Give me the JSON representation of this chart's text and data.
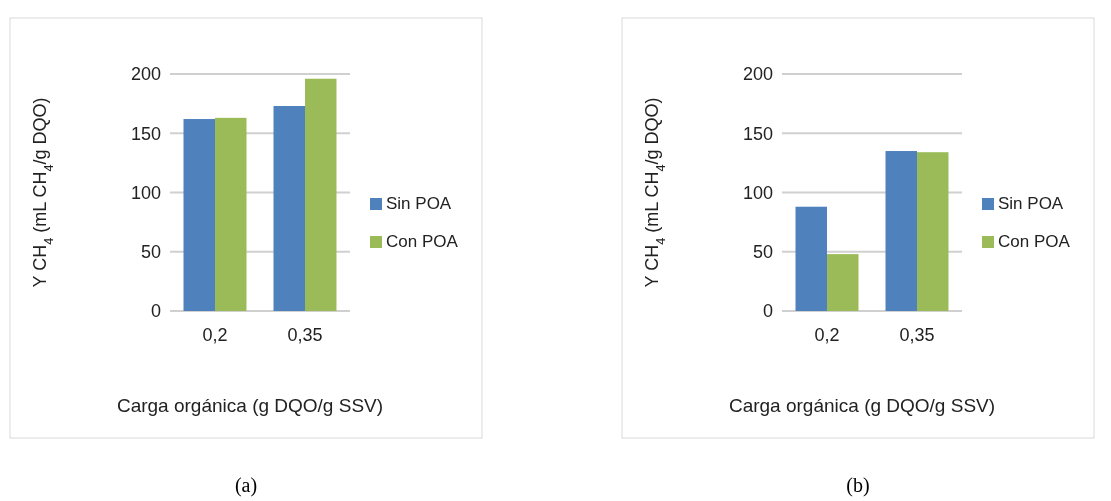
{
  "chart_data": [
    {
      "type": "bar",
      "categories": [
        "0,2",
        "0,35"
      ],
      "series": [
        {
          "name": "Sin POA",
          "color": "#4f81bd",
          "values": [
            162,
            173
          ]
        },
        {
          "name": "Con POA",
          "color": "#9bbb59",
          "values": [
            163,
            196
          ]
        }
      ],
      "ylim": [
        0,
        200
      ],
      "yticks": [
        0,
        50,
        100,
        150,
        200
      ],
      "grid": "y",
      "legend": "right",
      "xlabel": "Carga orgánica (g DQO/g SSV)",
      "ylabel": "Y CH$_{4}$ (mL CH$_{4}$/g DQO)",
      "annotations": [
        "(a)"
      ]
    },
    {
      "type": "bar",
      "categories": [
        "0,2",
        "0,35"
      ],
      "series": [
        {
          "name": "Sin POA",
          "color": "#4f81bd",
          "values": [
            88,
            135
          ]
        },
        {
          "name": "Con POA",
          "color": "#9bbb59",
          "values": [
            48,
            134
          ]
        }
      ],
      "ylim": [
        0,
        200
      ],
      "yticks": [
        0,
        50,
        100,
        150,
        200
      ],
      "grid": "y",
      "legend": "right",
      "xlabel": "Carga orgánica (g DQO/g SSV)",
      "ylabel": "Y CH$_{4}$ (mL CH$_{4}$/g DQO)",
      "annotations": [
        "(b)"
      ]
    }
  ]
}
